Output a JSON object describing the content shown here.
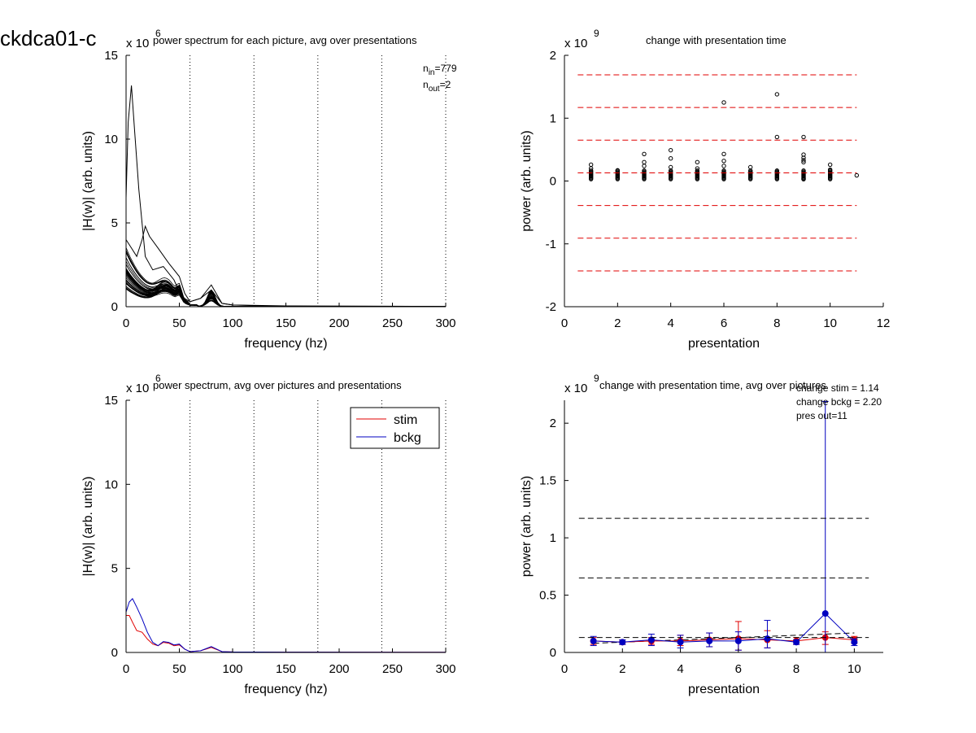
{
  "figure_title": "ckdca01-c",
  "chart_data": [
    {
      "id": "top-left",
      "type": "line",
      "title": "power spectrum for each picture, avg over presentations",
      "xlabel": "frequency (hz)",
      "ylabel": "|H(w)| (arb. units)",
      "exponent": {
        "base": "x 10",
        "power": "6"
      },
      "xlim": [
        0,
        300
      ],
      "ylim": [
        0,
        15
      ],
      "xticks": [
        0,
        50,
        100,
        150,
        200,
        250,
        300
      ],
      "yticks": [
        0,
        5,
        10,
        15
      ],
      "vlines": [
        60,
        120,
        180,
        240,
        300
      ],
      "annotations": [
        {
          "main": "n",
          "sub": "in",
          "rest": "=779"
        },
        {
          "main": "n",
          "sub": "out",
          "rest": "=2"
        }
      ],
      "series_generated": 40,
      "series": [
        {
          "name": "",
          "x": [
            0,
            2,
            5,
            8,
            12,
            18,
            25,
            35,
            45,
            52,
            60,
            70,
            80,
            90,
            100,
            130,
            180,
            300
          ],
          "values": [
            6.5,
            11.0,
            13.2,
            10.5,
            7.0,
            3.0,
            2.2,
            2.4,
            1.6,
            0.6,
            0.3,
            0.5,
            1.3,
            0.2,
            0.1,
            0.05,
            0.03,
            0.02
          ]
        },
        {
          "name": "",
          "x": [
            0,
            5,
            10,
            15,
            18,
            22,
            30,
            40,
            50,
            55,
            60,
            70,
            80,
            90,
            100,
            150,
            300
          ],
          "values": [
            4.0,
            3.5,
            3.0,
            4.0,
            4.8,
            4.2,
            3.5,
            2.6,
            1.8,
            0.8,
            0.3,
            0.5,
            1.0,
            0.2,
            0.1,
            0.05,
            0.02
          ]
        }
      ]
    },
    {
      "id": "top-right",
      "type": "scatter",
      "title": "change with presentation time",
      "xlabel": "presentation",
      "ylabel": "power (arb. units)",
      "exponent": {
        "base": "x 10",
        "power": "9"
      },
      "xlim": [
        0,
        12
      ],
      "ylim": [
        -2,
        2
      ],
      "xticks": [
        0,
        2,
        4,
        6,
        8,
        10,
        12
      ],
      "yticks": [
        -2,
        -1,
        0,
        1,
        2
      ],
      "hlines": [
        1.69,
        1.17,
        0.65,
        0.13,
        -0.39,
        -0.91,
        -1.43
      ],
      "hline_color": "#e00000",
      "outliers": [
        {
          "x": 1,
          "values": [
            0.26,
            0.2
          ]
        },
        {
          "x": 2,
          "values": [
            0.17
          ]
        },
        {
          "x": 3,
          "values": [
            0.43,
            0.3,
            0.24
          ]
        },
        {
          "x": 4,
          "values": [
            0.49,
            0.36,
            0.22
          ]
        },
        {
          "x": 5,
          "values": [
            0.3,
            0.2
          ]
        },
        {
          "x": 6,
          "values": [
            1.25,
            0.43,
            0.32,
            0.24
          ]
        },
        {
          "x": 7,
          "values": [
            0.22
          ]
        },
        {
          "x": 8,
          "values": [
            1.38,
            0.7,
            0.15
          ]
        },
        {
          "x": 9,
          "values": [
            0.7,
            0.42,
            0.37,
            0.33,
            0.3,
            0.03
          ]
        },
        {
          "x": 10,
          "values": [
            0.26,
            0.18
          ]
        },
        {
          "x": 11,
          "values": [
            0.09
          ]
        }
      ]
    },
    {
      "id": "bottom-left",
      "type": "line",
      "title": "power spectrum, avg over pictures and presentations",
      "xlabel": "frequency (hz)",
      "ylabel": "|H(w)| (arb. units)",
      "exponent": {
        "base": "x 10",
        "power": "6"
      },
      "xlim": [
        0,
        300
      ],
      "ylim": [
        0,
        15
      ],
      "xticks": [
        0,
        50,
        100,
        150,
        200,
        250,
        300
      ],
      "yticks": [
        0,
        5,
        10,
        15
      ],
      "vlines": [
        60,
        120,
        180,
        240,
        300
      ],
      "legend": {
        "placement": "top-right",
        "entries": [
          "stim",
          "bckg"
        ]
      },
      "series": [
        {
          "name": "stim",
          "color": "#e00000",
          "x": [
            0,
            3,
            6,
            10,
            15,
            20,
            25,
            30,
            35,
            40,
            45,
            50,
            55,
            60,
            70,
            80,
            90,
            100,
            150,
            300
          ],
          "values": [
            2.2,
            2.2,
            1.8,
            1.3,
            1.2,
            0.8,
            0.5,
            0.4,
            0.6,
            0.55,
            0.4,
            0.45,
            0.2,
            0.05,
            0.1,
            0.3,
            0.05,
            0.03,
            0.02,
            0.01
          ]
        },
        {
          "name": "bckg",
          "color": "#0000c0",
          "x": [
            0,
            3,
            6,
            10,
            15,
            20,
            25,
            30,
            35,
            40,
            45,
            50,
            55,
            60,
            70,
            80,
            90,
            100,
            150,
            300
          ],
          "values": [
            2.4,
            3.0,
            3.2,
            2.7,
            2.0,
            1.2,
            0.6,
            0.4,
            0.65,
            0.6,
            0.45,
            0.5,
            0.2,
            0.05,
            0.1,
            0.35,
            0.05,
            0.03,
            0.02,
            0.01
          ]
        }
      ]
    },
    {
      "id": "bottom-right",
      "type": "line",
      "title": "change with presentation time, avg over pictures",
      "xlabel": "presentation",
      "ylabel": "power (arb. units)",
      "exponent": {
        "base": "x 10",
        "power": "9"
      },
      "xlim": [
        0,
        11
      ],
      "ylim": [
        0,
        2.2
      ],
      "xticks": [
        0,
        2,
        4,
        6,
        8,
        10
      ],
      "yticks": [
        0,
        0.5,
        1,
        1.5,
        2
      ],
      "hlines": [
        1.17,
        0.65,
        0.13
      ],
      "hline_color": "#000000",
      "annotations": [
        "change stim = 1.14",
        "change bckg = 2.20",
        "pres out=11"
      ],
      "series": [
        {
          "name": "stim",
          "color": "#e00000",
          "x": [
            1,
            2,
            3,
            4,
            5,
            6,
            7,
            8,
            9,
            10
          ],
          "values": [
            0.1,
            0.09,
            0.1,
            0.1,
            0.11,
            0.12,
            0.11,
            0.1,
            0.13,
            0.11
          ],
          "err_lo": [
            0.03,
            0.02,
            0.03,
            0.04,
            0.06,
            0.1,
            0.07,
            0.03,
            0.06,
            0.03
          ],
          "err_hi": [
            0.03,
            0.02,
            0.03,
            0.05,
            0.06,
            0.15,
            0.08,
            0.03,
            0.05,
            0.03
          ]
        },
        {
          "name": "bckg",
          "color": "#0000c0",
          "x": [
            1,
            2,
            3,
            4,
            5,
            6,
            7,
            8,
            9,
            10
          ],
          "values": [
            0.1,
            0.09,
            0.11,
            0.09,
            0.1,
            0.1,
            0.12,
            0.09,
            0.34,
            0.09
          ],
          "err_lo": [
            0.04,
            0.02,
            0.05,
            0.05,
            0.05,
            0.08,
            0.08,
            0.02,
            0.34,
            0.03
          ],
          "err_hi": [
            0.04,
            0.02,
            0.05,
            0.06,
            0.07,
            0.08,
            0.16,
            0.02,
            1.85,
            0.03
          ]
        }
      ],
      "fit_line": {
        "color": "#000000",
        "x": [
          1,
          10
        ],
        "values": [
          0.08,
          0.17
        ]
      }
    }
  ]
}
